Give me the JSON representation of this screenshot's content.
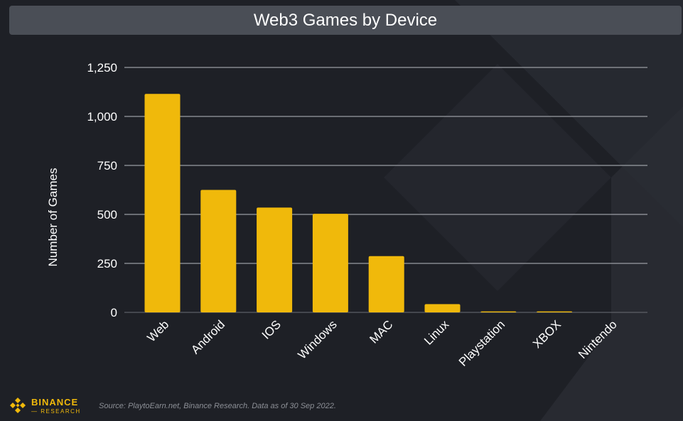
{
  "chart_data": {
    "type": "bar",
    "title": "Web3 Games by Device",
    "xlabel": "",
    "ylabel": "Number of Games",
    "categories": [
      "Web",
      "Android",
      "IOS",
      "Windows",
      "MAC",
      "Linux",
      "Playstation",
      "XBOX",
      "Nintendo"
    ],
    "values": [
      1115,
      625,
      535,
      503,
      287,
      42,
      5,
      5,
      0
    ],
    "ylim": [
      0,
      1250
    ],
    "yticks": [
      0,
      250,
      500,
      750,
      1000,
      1250
    ],
    "ytick_labels": [
      "0",
      "250",
      "500",
      "750",
      "1,000",
      "1,250"
    ],
    "grid": true,
    "legend": "none",
    "bar_color": "#f0b90b"
  },
  "footer": {
    "brand": "BINANCE",
    "brand_sub": "RESEARCH",
    "source": "Source: PlaytoEarn.net, Binance Research. Data as of 30 Sep 2022."
  },
  "colors": {
    "background": "#1e2026",
    "title_bar": "#4a4e56",
    "accent": "#f0b90b",
    "text": "#ffffff"
  }
}
